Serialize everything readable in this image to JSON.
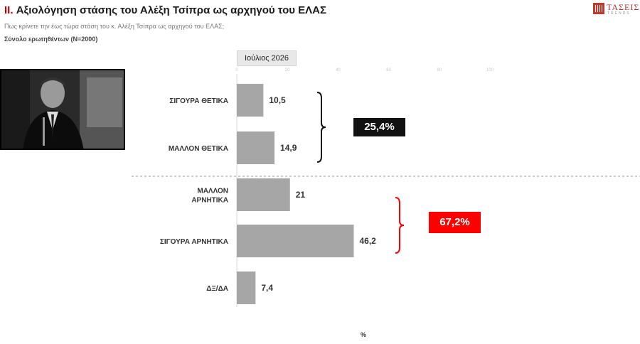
{
  "header": {
    "roman": "II.",
    "title": "Αξιολόγηση στάσης του Αλέξη Τσίπρα ως  αρχηγού του ΕΛΑΣ",
    "subtitle": "Πως κρίνετε την έως τώρα στάση του κ. Αλέξη Τσίπρα ως  αρχηγού του ΕΛΑΣ;",
    "base": "Σύνολο ερωτηθέντων (N=2000)"
  },
  "logo": {
    "name": "ΤΑΣΕΙΣ",
    "sub": "TRENDS"
  },
  "photo": {
    "icon": "person-photo"
  },
  "chart_data": {
    "type": "bar",
    "orientation": "horizontal",
    "period": "Ιούλιος 2026",
    "categories": [
      "ΣΙΓΟΥΡΑ ΘΕΤΙΚΑ",
      "ΜΑΛΛΟΝ ΘΕΤΙΚΑ",
      "ΜΑΛΛΟΝ ΑΡΝΗΤΙΚΑ",
      "ΣΙΓΟΥΡΑ ΑΡΝΗΤΙΚΑ",
      "ΔΞ/ΔΑ"
    ],
    "values": [
      10.5,
      14.9,
      21,
      46.2,
      7.4
    ],
    "value_labels": [
      "10,5",
      "14,9",
      "21",
      "46,2",
      "7,4"
    ],
    "xlim": [
      0,
      100
    ],
    "ticks": [
      0,
      20,
      40,
      60,
      80,
      100
    ],
    "xlabel": "%",
    "bar_color": "#a6a6a6",
    "groups": [
      {
        "label": "25,4%",
        "bracket_color": "#111111",
        "badge_color": "#111111"
      },
      {
        "label": "67,2%",
        "bracket_color": "#ff0000",
        "badge_color": "#ff0000"
      }
    ]
  }
}
